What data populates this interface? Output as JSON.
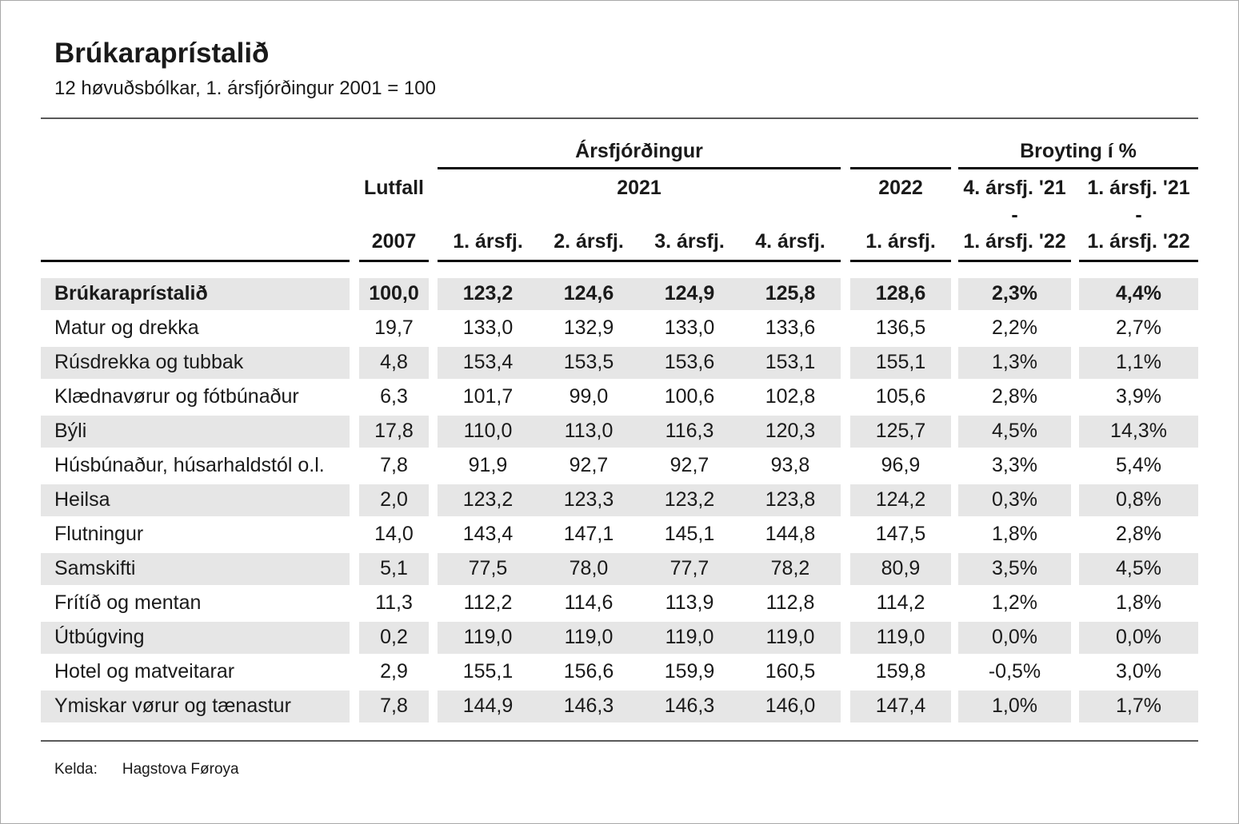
{
  "title": "Brúkaraprístalið",
  "subtitle": "12 høvuðsbólkar, 1. ársfjórðingur 2001 = 100",
  "header": {
    "group_quarters": "Ársfjórðingur",
    "group_change": "Broyting í %",
    "lutfall_top": "Lutfall",
    "lutfall_bottom": "2007",
    "year2021": "2021",
    "year2022": "2022",
    "q2022": "1. ársfj.",
    "quarters": [
      "1. ársfj.",
      "2. ársfj.",
      "3. ársfj.",
      "4. ársfj."
    ],
    "change1": {
      "line1": "4. ársfj. '21",
      "line2": "-",
      "line3": "1. ársfj. '22"
    },
    "change2": {
      "line1": "1. ársfj. '21",
      "line2": "-",
      "line3": "1. ársfj. '22"
    }
  },
  "rows": [
    {
      "label": "Brúkaraprístalið",
      "lutfall": "100,0",
      "q": [
        "123,2",
        "124,6",
        "124,9",
        "125,8"
      ],
      "y2022": "128,6",
      "c1": "2,3%",
      "c2": "4,4%"
    },
    {
      "label": "Matur og drekka",
      "lutfall": "19,7",
      "q": [
        "133,0",
        "132,9",
        "133,0",
        "133,6"
      ],
      "y2022": "136,5",
      "c1": "2,2%",
      "c2": "2,7%"
    },
    {
      "label": "Rúsdrekka og tubbak",
      "lutfall": "4,8",
      "q": [
        "153,4",
        "153,5",
        "153,6",
        "153,1"
      ],
      "y2022": "155,1",
      "c1": "1,3%",
      "c2": "1,1%"
    },
    {
      "label": "Klædnavørur og fótbúnaður",
      "lutfall": "6,3",
      "q": [
        "101,7",
        "99,0",
        "100,6",
        "102,8"
      ],
      "y2022": "105,6",
      "c1": "2,8%",
      "c2": "3,9%"
    },
    {
      "label": "Býli",
      "lutfall": "17,8",
      "q": [
        "110,0",
        "113,0",
        "116,3",
        "120,3"
      ],
      "y2022": "125,7",
      "c1": "4,5%",
      "c2": "14,3%"
    },
    {
      "label": "Húsbúnaður, húsarhaldstól o.l.",
      "lutfall": "7,8",
      "q": [
        "91,9",
        "92,7",
        "92,7",
        "93,8"
      ],
      "y2022": "96,9",
      "c1": "3,3%",
      "c2": "5,4%"
    },
    {
      "label": "Heilsa",
      "lutfall": "2,0",
      "q": [
        "123,2",
        "123,3",
        "123,2",
        "123,8"
      ],
      "y2022": "124,2",
      "c1": "0,3%",
      "c2": "0,8%"
    },
    {
      "label": "Flutningur",
      "lutfall": "14,0",
      "q": [
        "143,4",
        "147,1",
        "145,1",
        "144,8"
      ],
      "y2022": "147,5",
      "c1": "1,8%",
      "c2": "2,8%"
    },
    {
      "label": "Samskifti",
      "lutfall": "5,1",
      "q": [
        "77,5",
        "78,0",
        "77,7",
        "78,2"
      ],
      "y2022": "80,9",
      "c1": "3,5%",
      "c2": "4,5%"
    },
    {
      "label": "Frítíð og mentan",
      "lutfall": "11,3",
      "q": [
        "112,2",
        "114,6",
        "113,9",
        "112,8"
      ],
      "y2022": "114,2",
      "c1": "1,2%",
      "c2": "1,8%"
    },
    {
      "label": "Útbúgving",
      "lutfall": "0,2",
      "q": [
        "119,0",
        "119,0",
        "119,0",
        "119,0"
      ],
      "y2022": "119,0",
      "c1": "0,0%",
      "c2": "0,0%"
    },
    {
      "label": "Hotel og matveitarar",
      "lutfall": "2,9",
      "q": [
        "155,1",
        "156,6",
        "159,9",
        "160,5"
      ],
      "y2022": "159,8",
      "c1": "-0,5%",
      "c2": "3,0%"
    },
    {
      "label": "Ymiskar vørur og tænastur",
      "lutfall": "7,8",
      "q": [
        "144,9",
        "146,3",
        "146,3",
        "146,0"
      ],
      "y2022": "147,4",
      "c1": "1,0%",
      "c2": "1,7%"
    }
  ],
  "footer": {
    "label": "Kelda:",
    "source": "Hagstova Føroya"
  },
  "colors": {
    "stripe": "#e6e6e6",
    "text": "#1a1a1a",
    "heavy_rule": "#0d0d0d",
    "light_rule": "#595959"
  }
}
